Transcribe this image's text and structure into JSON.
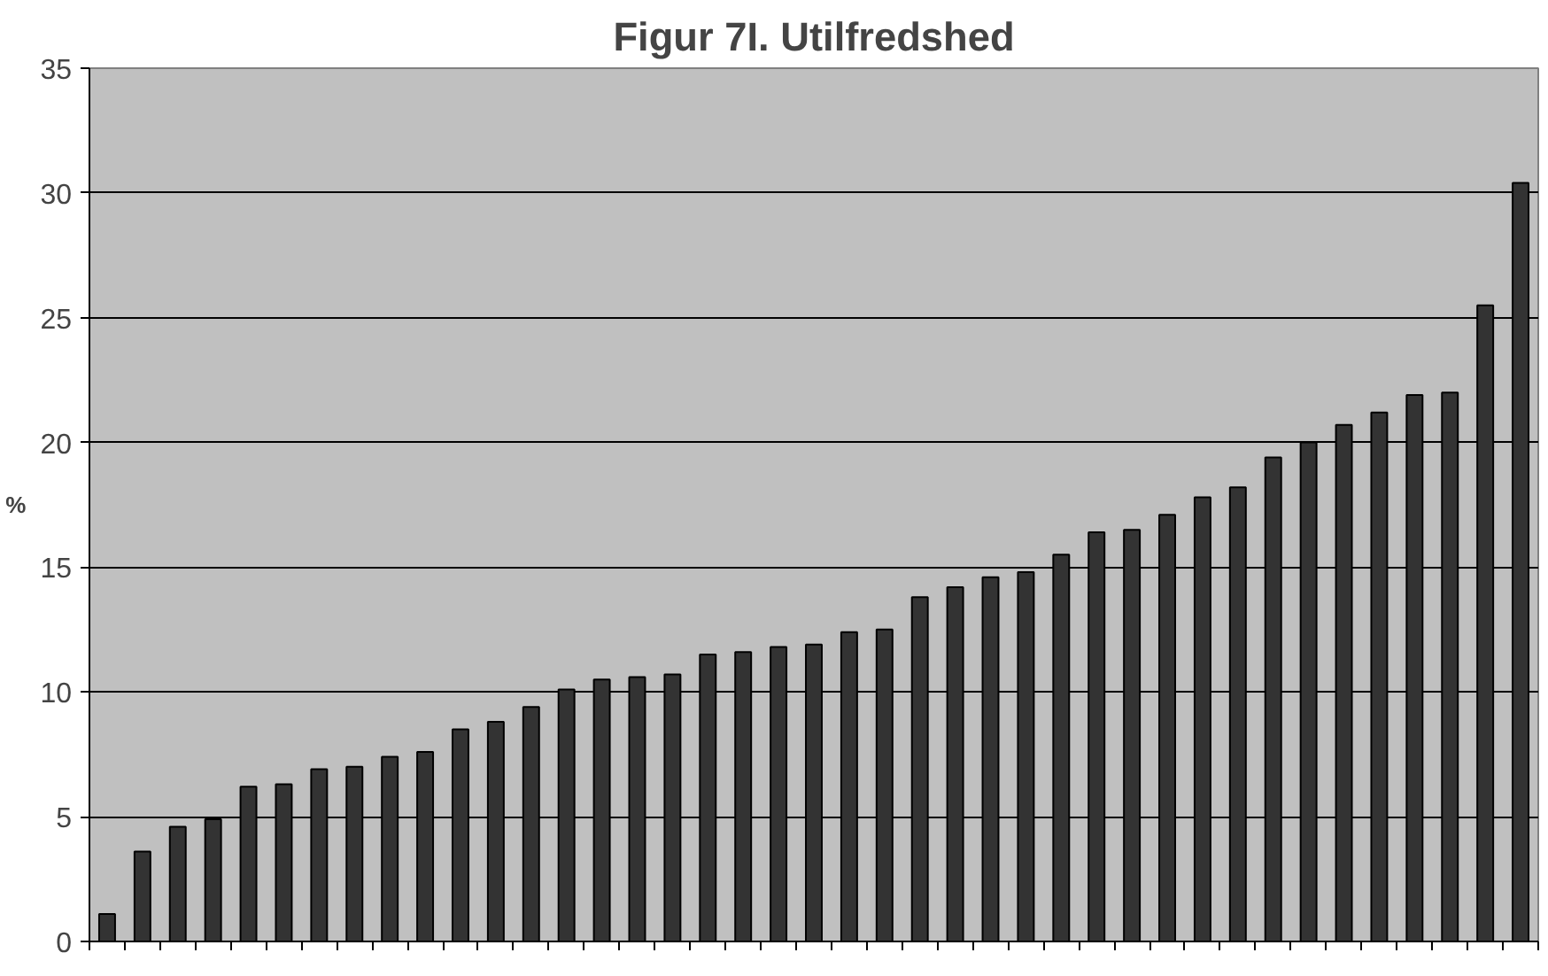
{
  "chart_data": {
    "type": "bar",
    "title": "Figur 7I. Utilfredshed",
    "ylabel": "%",
    "categories": [
      null,
      null,
      null,
      null,
      null,
      null,
      null,
      null,
      null,
      null,
      null,
      null,
      null,
      null,
      null,
      null,
      null,
      null,
      null,
      null,
      null,
      null,
      null,
      null,
      null,
      null,
      null,
      null,
      null,
      null,
      null,
      null,
      null,
      null,
      null,
      null,
      null,
      null,
      null,
      null,
      null
    ],
    "values": [
      1.1,
      3.6,
      4.6,
      4.9,
      6.2,
      6.3,
      6.9,
      7.0,
      7.4,
      7.6,
      8.5,
      8.8,
      9.4,
      10.1,
      10.5,
      10.6,
      10.7,
      11.5,
      11.6,
      11.8,
      11.9,
      12.4,
      12.5,
      13.8,
      14.2,
      14.6,
      14.8,
      15.5,
      16.4,
      16.5,
      17.1,
      17.8,
      18.2,
      19.4,
      20.0,
      20.7,
      21.2,
      21.9,
      22.0,
      25.5,
      30.4
    ],
    "color": "#333333",
    "ylim": [
      0,
      35
    ],
    "yticks": [
      0,
      5,
      10,
      15,
      20,
      25,
      30,
      35
    ],
    "grid": "y",
    "tick_labels": "y"
  }
}
